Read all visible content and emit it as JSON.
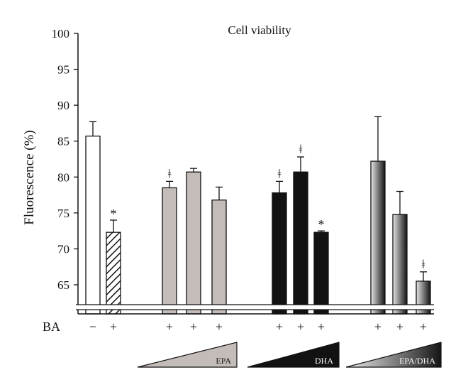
{
  "chart_data": {
    "type": "bar",
    "title": "Cell viability",
    "ylabel": "Fluorescence (%)",
    "xlabel": "",
    "ylim": [
      62,
      100
    ],
    "yticks": [
      65,
      70,
      75,
      80,
      85,
      90,
      95,
      100
    ],
    "axis_break": true,
    "row_label": "BA",
    "bars": [
      {
        "ba": "−",
        "value": 85.7,
        "error": 2.0,
        "sig": "",
        "style": "white"
      },
      {
        "ba": "+",
        "value": 72.3,
        "error": 1.7,
        "sig": "*",
        "style": "hatched"
      },
      {
        "ba": "+",
        "value": 78.5,
        "error": 0.9,
        "sig": "ǂ",
        "style": "gray"
      },
      {
        "ba": "+",
        "value": 80.7,
        "error": 0.5,
        "sig": "",
        "style": "gray"
      },
      {
        "ba": "+",
        "value": 76.8,
        "error": 1.8,
        "sig": "",
        "style": "gray"
      },
      {
        "ba": "+",
        "value": 77.8,
        "error": 1.6,
        "sig": "ǂ",
        "style": "black"
      },
      {
        "ba": "+",
        "value": 80.7,
        "error": 2.1,
        "sig": "ǂ",
        "style": "black"
      },
      {
        "ba": "+",
        "value": 72.3,
        "error": 0.2,
        "sig": "*",
        "style": "black"
      },
      {
        "ba": "+",
        "value": 82.2,
        "error": 6.2,
        "sig": "",
        "style": "gradient"
      },
      {
        "ba": "+",
        "value": 74.8,
        "error": 3.2,
        "sig": "",
        "style": "gradient"
      },
      {
        "ba": "+",
        "value": 65.5,
        "error": 1.3,
        "sig": "ǂ",
        "style": "gradient"
      }
    ],
    "dose_groups": [
      {
        "label": "EPA",
        "fill": "#c4bcb8",
        "bars": [
          2,
          4
        ]
      },
      {
        "label": "DHA",
        "fill": "#121212",
        "bars": [
          5,
          7
        ]
      },
      {
        "label": "EPA/DHA",
        "fill": "gradient",
        "bars": [
          8,
          10
        ]
      }
    ],
    "colors": {
      "gray": "#c4bcb8",
      "black": "#121212",
      "gradient_light": "#e6e6e6",
      "gradient_dark": "#141414"
    }
  }
}
